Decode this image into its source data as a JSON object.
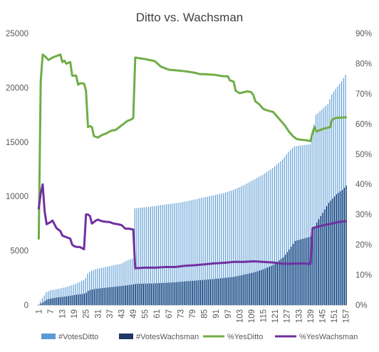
{
  "chart_data": {
    "type": "bar+line",
    "title": "Ditto vs. Wachsman",
    "xlabel": "",
    "ylabel": "",
    "y_left": {
      "min": 0,
      "max": 25000,
      "ticks": [
        "0",
        "5000",
        "10000",
        "15000",
        "20000",
        "25000"
      ]
    },
    "y_right": {
      "min": 0,
      "max": 90,
      "ticks": [
        "0%",
        "10%",
        "20%",
        "30%",
        "40%",
        "50%",
        "60%",
        "70%",
        "80%",
        "90%"
      ]
    },
    "x_tick_labels": [
      "1",
      "7",
      "13",
      "19",
      "25",
      "31",
      "37",
      "43",
      "49",
      "55",
      "61",
      "67",
      "73",
      "79",
      "85",
      "91",
      "97",
      "103",
      "109",
      "115",
      "121",
      "127",
      "133",
      "139",
      "145",
      "151",
      "157"
    ],
    "n_points": 157,
    "colors": {
      "votesDitto": "#5b9bd5",
      "votesWachsman": "#1f3864",
      "yesDitto": "#70ad47",
      "yesWachsman": "#7030a0",
      "axis": "#d9d9d9"
    },
    "series": [
      {
        "name": "#VotesDitto",
        "type": "bar",
        "axis": "left",
        "keypoints": [
          [
            1,
            50
          ],
          [
            2,
            330
          ],
          [
            3,
            630
          ],
          [
            4,
            880
          ],
          [
            5,
            1180
          ],
          [
            7,
            1350
          ],
          [
            10,
            1450
          ],
          [
            15,
            1650
          ],
          [
            20,
            1950
          ],
          [
            24,
            2300
          ],
          [
            25,
            2500
          ],
          [
            26,
            2900
          ],
          [
            27,
            3050
          ],
          [
            30,
            3300
          ],
          [
            35,
            3500
          ],
          [
            40,
            3700
          ],
          [
            43,
            3800
          ],
          [
            46,
            4100
          ],
          [
            49,
            4300
          ],
          [
            50,
            8900
          ],
          [
            55,
            9000
          ],
          [
            60,
            9100
          ],
          [
            65,
            9250
          ],
          [
            70,
            9350
          ],
          [
            75,
            9500
          ],
          [
            80,
            9700
          ],
          [
            85,
            9900
          ],
          [
            90,
            10100
          ],
          [
            95,
            10300
          ],
          [
            100,
            10600
          ],
          [
            105,
            11000
          ],
          [
            110,
            11500
          ],
          [
            115,
            12000
          ],
          [
            120,
            12600
          ],
          [
            125,
            13400
          ],
          [
            128,
            14100
          ],
          [
            131,
            14600
          ],
          [
            139,
            14800
          ],
          [
            140,
            15800
          ],
          [
            142,
            17500
          ],
          [
            148,
            18500
          ],
          [
            150,
            19400
          ],
          [
            152,
            19900
          ],
          [
            155,
            20600
          ],
          [
            157,
            21200
          ]
        ]
      },
      {
        "name": "#VotesWachsman",
        "type": "bar",
        "axis": "left",
        "keypoints": [
          [
            1,
            40
          ],
          [
            3,
            250
          ],
          [
            5,
            500
          ],
          [
            7,
            600
          ],
          [
            10,
            700
          ],
          [
            15,
            800
          ],
          [
            20,
            950
          ],
          [
            24,
            1050
          ],
          [
            25,
            1150
          ],
          [
            26,
            1300
          ],
          [
            27,
            1400
          ],
          [
            30,
            1500
          ],
          [
            35,
            1600
          ],
          [
            40,
            1700
          ],
          [
            45,
            1800
          ],
          [
            49,
            1900
          ],
          [
            50,
            1950
          ],
          [
            60,
            2000
          ],
          [
            70,
            2100
          ],
          [
            80,
            2250
          ],
          [
            90,
            2400
          ],
          [
            100,
            2600
          ],
          [
            110,
            3000
          ],
          [
            115,
            3300
          ],
          [
            120,
            3700
          ],
          [
            125,
            4400
          ],
          [
            128,
            5100
          ],
          [
            131,
            5900
          ],
          [
            135,
            6100
          ],
          [
            139,
            6300
          ],
          [
            140,
            6700
          ],
          [
            142,
            7600
          ],
          [
            145,
            8500
          ],
          [
            148,
            9400
          ],
          [
            152,
            10200
          ],
          [
            155,
            10600
          ],
          [
            157,
            11000
          ]
        ]
      },
      {
        "name": "%YesDitto",
        "type": "line",
        "axis": "right",
        "keypoints": [
          [
            1,
            22
          ],
          [
            2,
            74
          ],
          [
            3,
            83
          ],
          [
            4,
            82.5
          ],
          [
            5,
            81.8
          ],
          [
            6,
            81.2
          ],
          [
            8,
            82
          ],
          [
            10,
            82.5
          ],
          [
            12,
            83
          ],
          [
            13,
            80.5
          ],
          [
            14,
            81
          ],
          [
            15,
            80
          ],
          [
            17,
            80.5
          ],
          [
            18,
            76
          ],
          [
            20,
            76
          ],
          [
            21,
            73
          ],
          [
            22,
            73.5
          ],
          [
            24,
            73.4
          ],
          [
            25,
            71
          ],
          [
            26,
            59
          ],
          [
            27,
            59.3
          ],
          [
            28,
            59
          ],
          [
            29,
            56
          ],
          [
            31,
            55.5
          ],
          [
            33,
            56.3
          ],
          [
            35,
            56.8
          ],
          [
            37,
            57.5
          ],
          [
            38,
            57.8
          ],
          [
            40,
            58
          ],
          [
            42,
            59
          ],
          [
            43,
            59.5
          ],
          [
            45,
            60.5
          ],
          [
            46,
            61
          ],
          [
            48,
            61.5
          ],
          [
            49,
            62
          ],
          [
            50,
            82
          ],
          [
            55,
            81.5
          ],
          [
            60,
            80.8
          ],
          [
            61,
            80.2
          ],
          [
            63,
            79
          ],
          [
            65,
            78.5
          ],
          [
            67,
            78
          ],
          [
            70,
            77.8
          ],
          [
            75,
            77.5
          ],
          [
            78,
            77.2
          ],
          [
            80,
            77
          ],
          [
            83,
            76.5
          ],
          [
            85,
            76.5
          ],
          [
            90,
            76.3
          ],
          [
            95,
            75.8
          ],
          [
            97,
            75.8
          ],
          [
            98,
            74.5
          ],
          [
            100,
            74
          ],
          [
            101,
            71
          ],
          [
            103,
            70.2
          ],
          [
            105,
            70.5
          ],
          [
            107,
            70.8
          ],
          [
            109,
            70.5
          ],
          [
            110,
            69.5
          ],
          [
            111,
            67.5
          ],
          [
            113,
            66.5
          ],
          [
            115,
            65
          ],
          [
            117,
            64.5
          ],
          [
            120,
            64
          ],
          [
            122,
            62.5
          ],
          [
            124,
            61
          ],
          [
            126,
            59.5
          ],
          [
            128,
            57.5
          ],
          [
            130,
            56
          ],
          [
            132,
            55
          ],
          [
            134,
            54.8
          ],
          [
            137,
            54.6
          ],
          [
            139,
            54.3
          ],
          [
            140,
            57
          ],
          [
            141,
            59
          ],
          [
            142,
            57.5
          ],
          [
            144,
            58
          ],
          [
            146,
            58.5
          ],
          [
            148,
            58.8
          ],
          [
            149,
            59
          ],
          [
            150,
            61.5
          ],
          [
            152,
            62
          ],
          [
            157,
            62.2
          ]
        ]
      },
      {
        "name": "%YesWachsman",
        "type": "line",
        "axis": "right",
        "keypoints": [
          [
            1,
            32
          ],
          [
            2,
            37
          ],
          [
            3,
            40
          ],
          [
            4,
            31
          ],
          [
            5,
            26.8
          ],
          [
            7,
            27.5
          ],
          [
            8,
            28
          ],
          [
            10,
            25.5
          ],
          [
            12,
            24.5
          ],
          [
            13,
            23
          ],
          [
            15,
            22.5
          ],
          [
            17,
            22
          ],
          [
            18,
            20
          ],
          [
            19,
            19.5
          ],
          [
            20,
            19.3
          ],
          [
            22,
            19.2
          ],
          [
            24,
            18.5
          ],
          [
            25,
            30
          ],
          [
            26,
            30
          ],
          [
            27,
            29.5
          ],
          [
            28,
            27
          ],
          [
            30,
            28
          ],
          [
            31,
            28.3
          ],
          [
            33,
            27.8
          ],
          [
            35,
            27.6
          ],
          [
            37,
            27.5
          ],
          [
            39,
            27
          ],
          [
            41,
            26.8
          ],
          [
            43,
            26.5
          ],
          [
            45,
            25.3
          ],
          [
            47,
            25.3
          ],
          [
            49,
            25
          ],
          [
            50,
            12.2
          ],
          [
            55,
            12.4
          ],
          [
            60,
            12.4
          ],
          [
            65,
            12.6
          ],
          [
            70,
            12.6
          ],
          [
            75,
            13
          ],
          [
            80,
            13.2
          ],
          [
            85,
            13.5
          ],
          [
            90,
            13.8
          ],
          [
            95,
            14
          ],
          [
            100,
            14.3
          ],
          [
            105,
            14.3
          ],
          [
            110,
            14.5
          ],
          [
            115,
            14.3
          ],
          [
            120,
            14.1
          ],
          [
            125,
            13.7
          ],
          [
            130,
            13.7
          ],
          [
            135,
            13.8
          ],
          [
            139,
            13.6
          ],
          [
            140,
            25.5
          ],
          [
            143,
            26
          ],
          [
            146,
            26.5
          ],
          [
            150,
            27
          ],
          [
            153,
            27.5
          ],
          [
            157,
            27.8
          ]
        ]
      }
    ],
    "legend": {
      "position": "bottom",
      "entries": [
        "#VotesDitto",
        "#VotesWachsman",
        "%YesDitto",
        "%YesWachsman"
      ]
    }
  }
}
